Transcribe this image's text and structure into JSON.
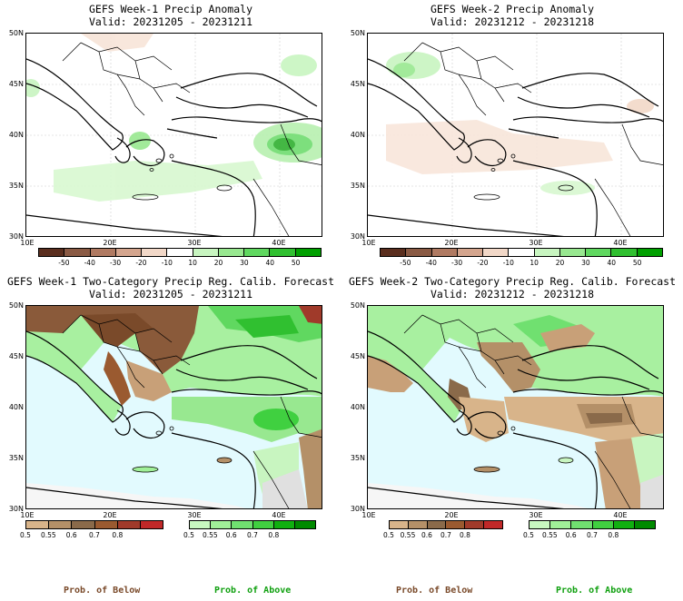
{
  "panels": [
    {
      "title": "GEFS Week-1 Precip Anomaly",
      "valid": "Valid: 20231205 - 20231211",
      "type": "anomaly"
    },
    {
      "title": "GEFS Week-2 Precip Anomaly",
      "valid": "Valid: 20231212 - 20231218",
      "type": "anomaly"
    },
    {
      "title": "GEFS Week-1 Two-Category Precip Reg. Calib. Forecast",
      "valid": "Valid: 20231205 - 20231211",
      "type": "prob"
    },
    {
      "title": "GEFS Week-2 Two-Category Precip Reg. Calib. Forecast",
      "valid": "Valid: 20231212 - 20231218",
      "type": "prob"
    }
  ],
  "axes": {
    "lat_labels": [
      "50N",
      "45N",
      "40N",
      "35N",
      "30N"
    ],
    "lon_labels": [
      "10E",
      "20E",
      "30E",
      "40E"
    ]
  },
  "anomaly_colorbar": {
    "labels": [
      "-50",
      "-40",
      "-30",
      "-20",
      "-10",
      "10",
      "20",
      "30",
      "40",
      "50"
    ],
    "colors": [
      "#5a2e1e",
      "#8a5a44",
      "#b07a62",
      "#d4a58e",
      "#f2d8c8",
      "#ffffff",
      "#c8f5c0",
      "#98e890",
      "#60d860",
      "#30c030",
      "#00a000"
    ]
  },
  "prob_below_colorbar": {
    "labels": [
      "0.5",
      "0.55",
      "0.6",
      "0.7",
      "0.8"
    ],
    "colors": [
      "#d8b48a",
      "#b49068",
      "#8a6a4a",
      "#9a5a30",
      "#a03a2a",
      "#c02828"
    ]
  },
  "prob_above_colorbar": {
    "labels": [
      "0.5",
      "0.55",
      "0.6",
      "0.7",
      "0.8"
    ],
    "colors": [
      "#c8f8c0",
      "#a0f098",
      "#70e070",
      "#40d040",
      "#10b010",
      "#008a00"
    ]
  },
  "legend": {
    "below_label": "Prob. of Below",
    "above_label": "Prob. of Above",
    "below_color": "#7a4a2a",
    "above_color": "#10a010"
  },
  "colors": {
    "sea": "#e2fafe",
    "land_default": "#ffffff",
    "no_data_gray": "#e8e8e8"
  }
}
